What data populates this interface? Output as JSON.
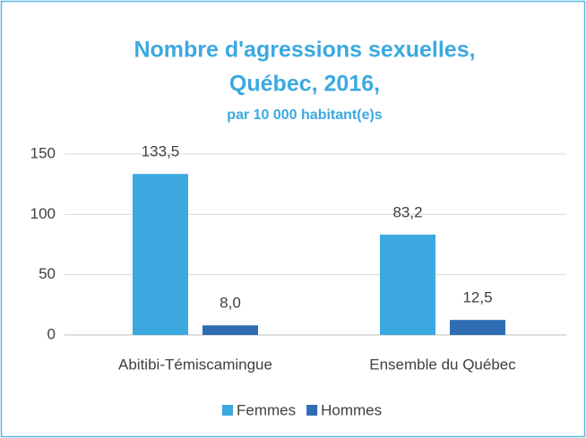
{
  "chart_data": {
    "type": "bar",
    "title": [
      "Nombre d'agressions sexuelles,",
      "Québec, 2016,"
    ],
    "subtitle": "par 10 000 habitant(e)s",
    "categories": [
      "Abitibi-Témiscamingue",
      "Ensemble du Québec"
    ],
    "series": [
      {
        "name": "Femmes",
        "color": "#3ba9e0",
        "values": [
          133.5,
          83.2
        ],
        "value_labels": [
          "133,5",
          "83,2"
        ]
      },
      {
        "name": "Hommes",
        "color": "#2e6db4",
        "values": [
          8.0,
          12.5
        ],
        "value_labels": [
          "8,0",
          "12,5"
        ]
      }
    ],
    "ylim": [
      0,
      150
    ],
    "yticks": [
      0,
      50,
      100,
      150
    ],
    "grid": true,
    "legend": "bottom"
  }
}
